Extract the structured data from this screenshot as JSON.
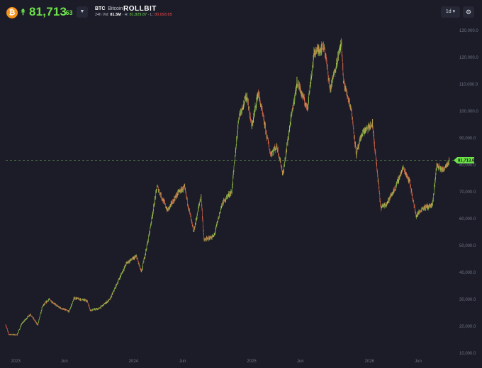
{
  "header": {
    "coin_icon_glyph": "₿",
    "coin_icon_name": "bitcoin-icon",
    "change_icon_name": "double-chevron-up-icon",
    "price_main": "81,713",
    "price_decimal": ".63",
    "dropdown_icon_name": "caret-down-icon",
    "symbol": "BTC",
    "name": "Bitcoin",
    "brand": "ROLLBIT",
    "stats": {
      "volume_label": "24h Vol:",
      "volume_value": "81.5M",
      "high_label": "H:",
      "high_value": "81,829.87",
      "low_label": "L:",
      "low_value": "80,093.65"
    },
    "timeframe": "1d",
    "settings_icon_name": "gear-icon"
  },
  "colors": {
    "background": "#1b1c28",
    "up": "#6ee24a",
    "down": "#ff4d4d",
    "candle_up": "#9ac94a",
    "candle_down": "#e0694a",
    "brand_accent": "#f7931a"
  },
  "chart_data": {
    "type": "candlestick",
    "current_price_label": "81,713.6",
    "current_price": 81713.6,
    "ylim": [
      10000,
      130000
    ],
    "y_ticks": [
      "130,000.0",
      "120,000.0",
      "110,000.0",
      "100,000.0",
      "90,000.0",
      "80,000.0",
      "70,000.0",
      "60,000.0",
      "50,000.0",
      "40,000.0",
      "30,000.0",
      "20,000.0",
      "10,000.0"
    ],
    "y_tick_values": [
      130000,
      120000,
      110000,
      100000,
      90000,
      80000,
      70000,
      60000,
      50000,
      40000,
      30000,
      20000,
      10000
    ],
    "x_ticks": [
      "2023",
      "Jun",
      "2024",
      "Jun",
      "2025",
      "Jun",
      "2026",
      "Jun"
    ],
    "x_tick_dates": [
      "2023-01-01",
      "2023-06-01",
      "2024-01-01",
      "2024-06-01",
      "2025-01-01",
      "2025-06-01",
      "2026-01-01",
      "2026-06-01"
    ],
    "x_range": [
      "2022-12-01",
      "2026-09-10"
    ],
    "grid": false,
    "price_path": [
      {
        "date": "2022-12-01",
        "price": 20500
      },
      {
        "date": "2022-12-10",
        "price": 17000
      },
      {
        "date": "2023-01-05",
        "price": 16800
      },
      {
        "date": "2023-01-20",
        "price": 21000
      },
      {
        "date": "2023-02-15",
        "price": 24500
      },
      {
        "date": "2023-03-10",
        "price": 20500
      },
      {
        "date": "2023-03-25",
        "price": 27500
      },
      {
        "date": "2023-04-14",
        "price": 30000
      },
      {
        "date": "2023-05-15",
        "price": 27000
      },
      {
        "date": "2023-06-15",
        "price": 25500
      },
      {
        "date": "2023-07-01",
        "price": 30500
      },
      {
        "date": "2023-08-10",
        "price": 29500
      },
      {
        "date": "2023-08-20",
        "price": 26000
      },
      {
        "date": "2023-09-15",
        "price": 26500
      },
      {
        "date": "2023-10-20",
        "price": 30000
      },
      {
        "date": "2023-11-15",
        "price": 37000
      },
      {
        "date": "2023-12-10",
        "price": 43500
      },
      {
        "date": "2024-01-10",
        "price": 46000
      },
      {
        "date": "2024-01-25",
        "price": 40000
      },
      {
        "date": "2024-02-15",
        "price": 52000
      },
      {
        "date": "2024-03-14",
        "price": 72000
      },
      {
        "date": "2024-04-15",
        "price": 63000
      },
      {
        "date": "2024-05-20",
        "price": 70000
      },
      {
        "date": "2024-06-07",
        "price": 71500
      },
      {
        "date": "2024-07-05",
        "price": 55000
      },
      {
        "date": "2024-07-28",
        "price": 68500
      },
      {
        "date": "2024-08-06",
        "price": 52000
      },
      {
        "date": "2024-09-06",
        "price": 53500
      },
      {
        "date": "2024-09-30",
        "price": 65000
      },
      {
        "date": "2024-10-15",
        "price": 68000
      },
      {
        "date": "2024-10-31",
        "price": 70000
      },
      {
        "date": "2024-11-22",
        "price": 98000
      },
      {
        "date": "2024-12-17",
        "price": 106000
      },
      {
        "date": "2025-01-01",
        "price": 94000
      },
      {
        "date": "2025-01-21",
        "price": 107000
      },
      {
        "date": "2025-02-28",
        "price": 84000
      },
      {
        "date": "2025-03-20",
        "price": 87000
      },
      {
        "date": "2025-04-08",
        "price": 76500
      },
      {
        "date": "2025-05-01",
        "price": 96000
      },
      {
        "date": "2025-05-22",
        "price": 111000
      },
      {
        "date": "2025-06-22",
        "price": 101000
      },
      {
        "date": "2025-07-14",
        "price": 122000
      },
      {
        "date": "2025-08-14",
        "price": 124000
      },
      {
        "date": "2025-09-01",
        "price": 108000
      },
      {
        "date": "2025-10-06",
        "price": 125500
      },
      {
        "date": "2025-10-12",
        "price": 111000
      },
      {
        "date": "2025-11-05",
        "price": 101000
      },
      {
        "date": "2025-11-21",
        "price": 84000
      },
      {
        "date": "2025-12-10",
        "price": 92000
      },
      {
        "date": "2026-01-10",
        "price": 95000
      },
      {
        "date": "2026-02-05",
        "price": 64000
      },
      {
        "date": "2026-02-25",
        "price": 66000
      },
      {
        "date": "2026-03-20",
        "price": 71000
      },
      {
        "date": "2026-04-15",
        "price": 79000
      },
      {
        "date": "2026-05-05",
        "price": 74000
      },
      {
        "date": "2026-05-25",
        "price": 61000
      },
      {
        "date": "2026-06-15",
        "price": 64000
      },
      {
        "date": "2026-07-15",
        "price": 65000
      },
      {
        "date": "2026-07-28",
        "price": 80000
      },
      {
        "date": "2026-08-15",
        "price": 78000
      },
      {
        "date": "2026-09-05",
        "price": 81700
      }
    ]
  }
}
